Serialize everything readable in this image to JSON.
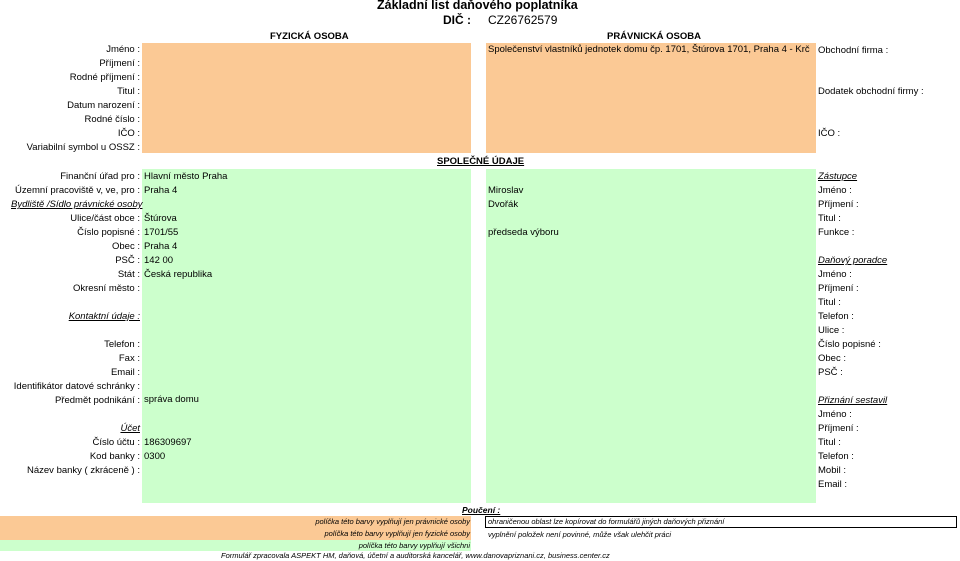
{
  "header": {
    "title": "Základní list daňového poplatníka",
    "dic_label": "DIČ :",
    "dic_value": "CZ26762579",
    "col_fyzicka": "FYZICKÁ OSOBA",
    "col_pravnicka": "PRÁVNICKÁ OSOBA",
    "spolecne": "SPOLEČNÉ ÚDAJE"
  },
  "fyzicka": {
    "jmeno": "Jméno :",
    "prijmeni": "Příjmení :",
    "rodne_prijmeni": "Rodné příjmení :",
    "titul": "Titul :",
    "datum_narozeni": "Datum narození :",
    "rodne_cislo": "Rodné číslo :",
    "ico": "IČO :",
    "variabilni_symbol": "Variabilní symbol u OSSZ :"
  },
  "pravnicka": {
    "nazev": "Společenství vlastníků jednotek domu čp. 1701, Štúrova 1701, Praha 4 - Krč",
    "obchodni_firma": "Obchodní firma :",
    "dodatek": "Dodatek obchodní firmy :",
    "ico": "IČO :"
  },
  "spolecne": {
    "financni_urad_label": "Finanční úřad pro :",
    "financni_urad_value": "Hlavní město Praha",
    "uzemni_pracoviste_label": "Územní pracoviště v, ve, pro :",
    "uzemni_pracoviste_value": "Praha 4",
    "bydliste_label": "Bydliště /Sídlo právnické osoby",
    "ulice_label": "Ulice/část obce :",
    "ulice_value": "Štúrova",
    "cislo_popisne_label": "Číslo popisné :",
    "cislo_popisne_value": "1701/55",
    "obec_label": "Obec :",
    "obec_value": "Praha 4",
    "psc_label": "PSČ :",
    "psc_value": "142 00",
    "stat_label": "Stát :",
    "stat_value": "Česká republika",
    "okresni_mesto_label": "Okresní město :",
    "kontaktni_label": "Kontaktní údaje :",
    "telefon_label": "Telefon :",
    "fax_label": "Fax :",
    "email_label": "Email :",
    "datova_schranka_label": "Identifikátor datové schránky :",
    "predmet_label": "Předmět podnikání :",
    "predmet_value": "správa domu",
    "ucet_label": "Účet",
    "cislo_uctu_label": "Číslo účtu :",
    "cislo_uctu_value": "186309697",
    "kod_banky_label": "Kod banky :",
    "kod_banky_value": "0300",
    "nazev_banky_label": "Název banky ( zkráceně ) :"
  },
  "zastupce": {
    "heading": "Zástupce",
    "jmeno_label": "Jméno :",
    "jmeno_value": "Miroslav",
    "prijmeni_label": "Příjmení :",
    "prijmeni_value": "Dvořák",
    "titul_label": "Titul :",
    "funkce_label": "Funkce :",
    "funkce_value": "předseda výboru"
  },
  "poradce": {
    "heading": "Daňový poradce",
    "jmeno": "Jméno :",
    "prijmeni": "Příjmení :",
    "titul": "Titul :",
    "telefon": "Telefon :",
    "ulice": "Ulice :",
    "cislo_popisne": "Číslo popisné :",
    "obec": "Obec :",
    "psc": "PSČ :"
  },
  "priznani": {
    "heading": "Přiznání sestavil",
    "jmeno": "Jméno :",
    "prijmeni": "Příjmení :",
    "titul": "Titul :",
    "telefon": "Telefon :",
    "mobil": "Mobil :",
    "email": "Email :"
  },
  "legend": {
    "heading": "Poučení :",
    "pravnicka": "políčka této barvy vyplňují jen právnické osoby",
    "fyzicka": "políčka této barvy vyplňují jen fyzické osoby",
    "vsichni": "políčka této barvy vyplňují všichni",
    "ohranicena": "ohraničenou oblast lze kopírovat do formulářů jiných daňových přiznání",
    "nepovinne": "vyplnění položek není povinné, může však ulehčit práci",
    "footer": "Formulář zpracovala ASPEKT HM, daňová, účetní a auditorská kancelář, www.danovapriznani.cz, business.center.cz"
  },
  "colors": {
    "orange": "#fbc995",
    "green": "#ccffcc"
  }
}
